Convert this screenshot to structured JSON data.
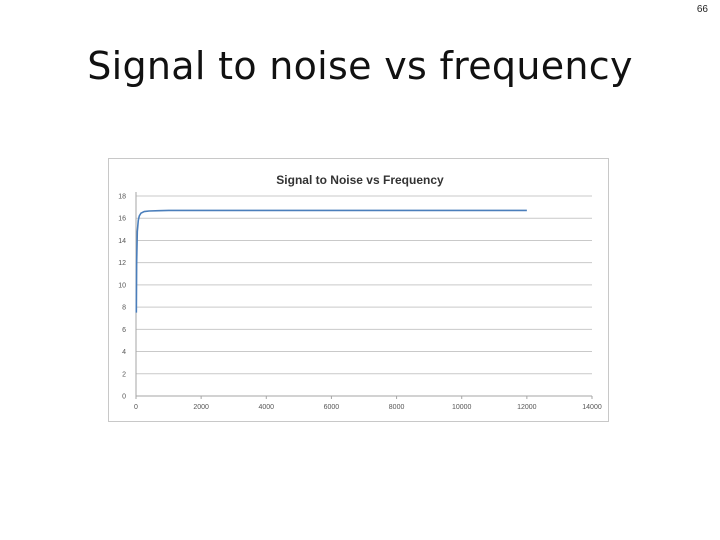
{
  "slide": {
    "number": "66",
    "title": "Signal to noise vs frequency"
  },
  "chart_data": {
    "type": "line",
    "title": "Signal to Noise vs Frequency",
    "xlabel": "",
    "ylabel": "",
    "xlim": [
      0,
      14000
    ],
    "ylim": [
      0,
      18
    ],
    "xticks": [
      0,
      2000,
      4000,
      6000,
      8000,
      10000,
      12000,
      14000
    ],
    "yticks": [
      0,
      2,
      4,
      6,
      8,
      10,
      12,
      14,
      16,
      18
    ],
    "grid": "horizontal",
    "legend": "none",
    "series": [
      {
        "color": "#4a7ebb",
        "x": [
          10,
          20,
          40,
          70,
          100,
          150,
          250,
          400,
          700,
          1000,
          2000,
          4000,
          6000,
          8000,
          10000,
          12000
        ],
        "y": [
          7.5,
          12.0,
          14.8,
          15.8,
          16.2,
          16.45,
          16.6,
          16.65,
          16.68,
          16.7,
          16.7,
          16.7,
          16.7,
          16.7,
          16.7,
          16.7
        ]
      }
    ]
  }
}
